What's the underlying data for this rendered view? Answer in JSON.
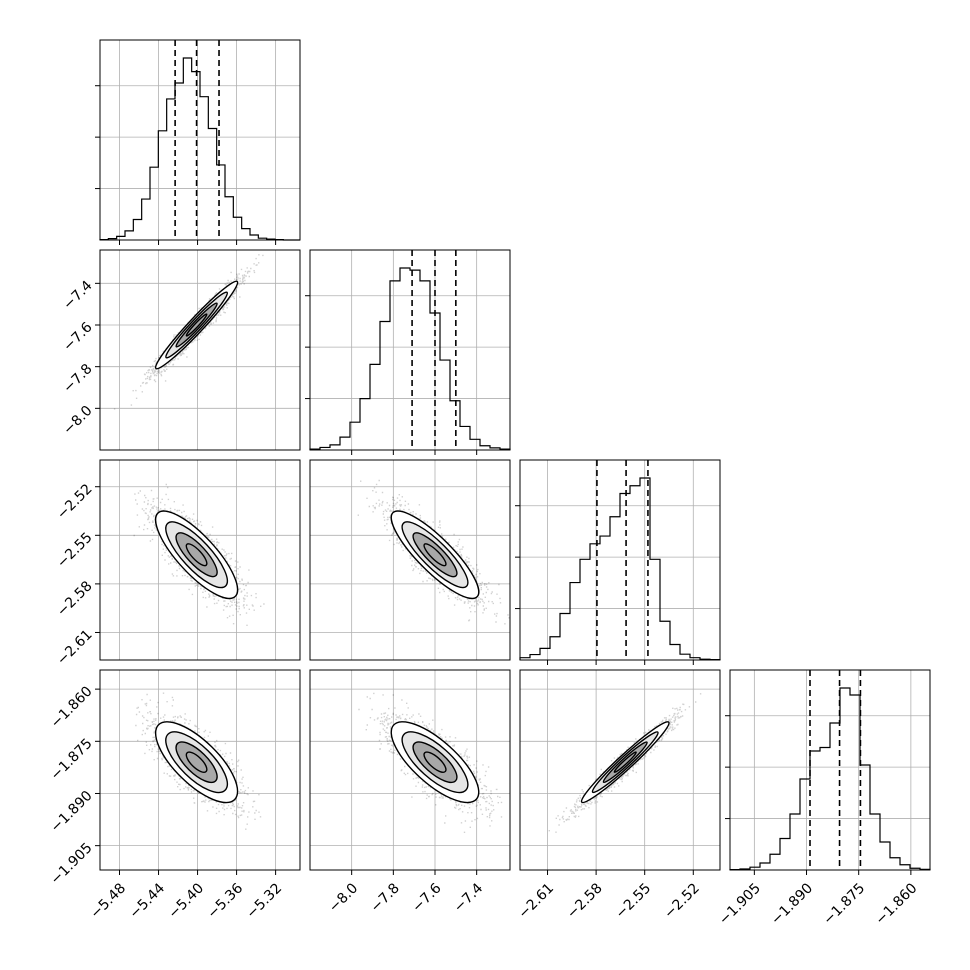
{
  "chart_data": {
    "type": "corner",
    "n_params": 4,
    "grid": true,
    "params": [
      {
        "range": [
          -5.5,
          -5.295
        ],
        "ticks": [
          -5.48,
          -5.44,
          -5.4,
          -5.36,
          -5.32
        ],
        "tick_labels": [
          "−5.48",
          "−5.44",
          "−5.40",
          "−5.36",
          "−5.32"
        ],
        "mean": -5.401,
        "sd": 0.021,
        "quantiles": [
          -5.423,
          -5.401,
          -5.378
        ]
      },
      {
        "range": [
          -8.2,
          -7.24
        ],
        "ticks": [
          -8.0,
          -7.8,
          -7.6,
          -7.4
        ],
        "tick_labels": [
          "−8.0",
          "−7.8",
          "−7.6",
          "−7.4"
        ],
        "mean": -7.6,
        "sd": 0.105,
        "quantiles": [
          -7.71,
          -7.6,
          -7.5
        ]
      },
      {
        "range": [
          -2.627,
          -2.5035
        ],
        "ticks": [
          -2.61,
          -2.58,
          -2.55,
          -2.52
        ],
        "tick_labels": [
          "−2.61",
          "−2.58",
          "−2.55",
          "−2.52"
        ],
        "mean": -2.562,
        "sd": 0.0135,
        "quantiles": [
          -2.5795,
          -2.5615,
          -2.548
        ]
      },
      {
        "range": [
          -1.912,
          -1.8545
        ],
        "ticks": [
          -1.905,
          -1.89,
          -1.875,
          -1.86
        ],
        "tick_labels": [
          "−1.905",
          "−1.890",
          "−1.875",
          "−1.860"
        ],
        "mean": -1.881,
        "sd": 0.0058,
        "quantiles": [
          -1.889,
          -1.8805,
          -1.8745
        ]
      }
    ],
    "correlations": {
      "1-0": 0.97,
      "2-0": -0.8,
      "2-1": -0.85,
      "3-0": -0.72,
      "3-1": -0.74,
      "3-2": 0.97
    },
    "histograms": [
      {
        "bins": 24,
        "counts": [
          1,
          3,
          8,
          20,
          45,
          90,
          160,
          240,
          310,
          345,
          400,
          370,
          315,
          245,
          165,
          95,
          50,
          25,
          11,
          4,
          2,
          1,
          0,
          0
        ]
      },
      {
        "bins": 20,
        "counts": [
          2,
          6,
          12,
          30,
          65,
          120,
          200,
          300,
          395,
          425,
          420,
          395,
          320,
          210,
          115,
          55,
          25,
          10,
          5,
          2
        ]
      },
      {
        "bins": 20,
        "counts": [
          6,
          14,
          30,
          60,
          120,
          200,
          260,
          300,
          320,
          370,
          430,
          450,
          470,
          260,
          100,
          40,
          15,
          6,
          2,
          1
        ]
      },
      {
        "bins": 20,
        "counts": [
          1,
          3,
          8,
          20,
          45,
          90,
          160,
          260,
          340,
          350,
          420,
          520,
          500,
          300,
          160,
          80,
          35,
          15,
          5,
          2
        ]
      }
    ],
    "scatter": {
      "samples": 2200,
      "color": "#000000",
      "contour_fill": "#a8a8a8",
      "density_color": "#000000"
    }
  }
}
